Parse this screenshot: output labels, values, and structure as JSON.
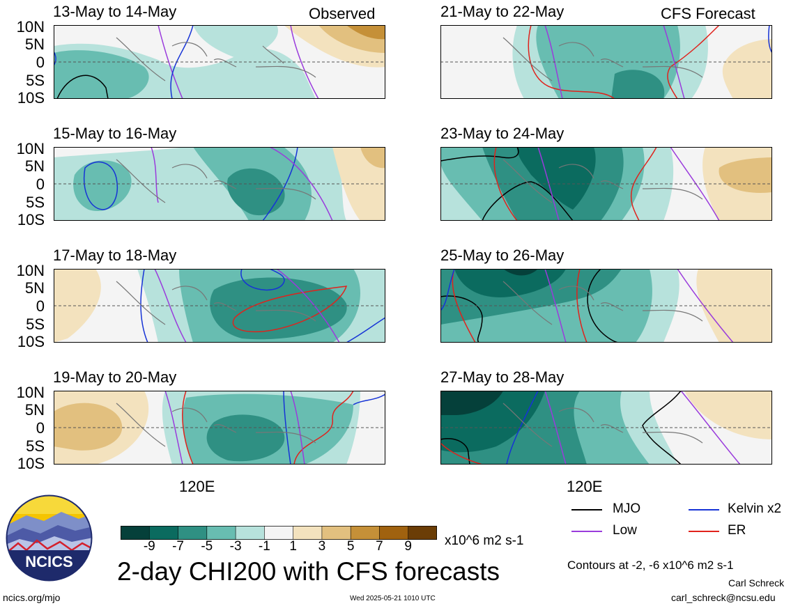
{
  "panels": {
    "observed": [
      {
        "title": "13-May to 14-May",
        "tag": "Observed"
      },
      {
        "title": "15-May to 16-May",
        "tag": ""
      },
      {
        "title": "17-May to 18-May",
        "tag": ""
      },
      {
        "title": "19-May to 20-May",
        "tag": ""
      }
    ],
    "forecast": [
      {
        "title": "21-May to 22-May",
        "tag": "CFS Forecast"
      },
      {
        "title": "23-May to 24-May",
        "tag": ""
      },
      {
        "title": "25-May to 26-May",
        "tag": ""
      },
      {
        "title": "27-May to 28-May",
        "tag": ""
      }
    ]
  },
  "axes": {
    "lat_labels": [
      "10N",
      "5N",
      "0",
      "5S",
      "10S"
    ],
    "lon_label": "120E"
  },
  "colorbar": {
    "ticks": [
      "-9",
      "-7",
      "-5",
      "-3",
      "-1",
      "1",
      "3",
      "5",
      "7",
      "9"
    ],
    "units": "x10^6 m2 s-1",
    "colors": [
      "#05403a",
      "#0b6b5f",
      "#2f9083",
      "#68bdb1",
      "#b7e2dc",
      "#f4f4f4",
      "#f3e2be",
      "#e2c07f",
      "#c59038",
      "#a0620f",
      "#6b3d06"
    ]
  },
  "legend": {
    "items": [
      {
        "label": "MJO",
        "color": "#000000"
      },
      {
        "label": "Kelvin x2",
        "color": "#1633d6"
      },
      {
        "label": "Low",
        "color": "#9a3bdc"
      },
      {
        "label": "ER",
        "color": "#e0221c"
      }
    ],
    "contours_note": "Contours at -2, -6 x10^6 m2 s-1"
  },
  "main_title": "2-day CHI200 with CFS forecasts",
  "logo_text": "NCICS",
  "footer": {
    "url": "ncics.org/mjo",
    "timestamp": "Wed 2025-05-21 1010 UTC",
    "author": "Carl Schreck",
    "email": "carl_schreck@ncsu.edu"
  }
}
